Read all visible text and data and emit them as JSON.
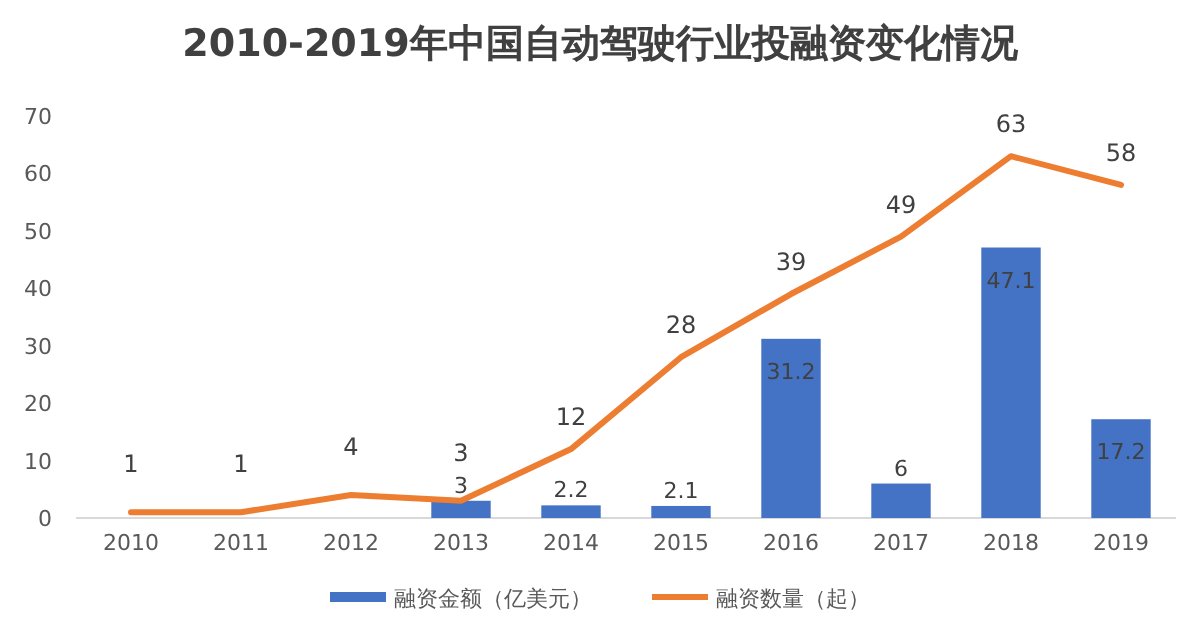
{
  "chart_data": {
    "type": "bar",
    "title": "2010-2019年中国自动驾驶行业投融资变化情况",
    "categories": [
      "2010",
      "2011",
      "2012",
      "2013",
      "2014",
      "2015",
      "2016",
      "2017",
      "2018",
      "2019"
    ],
    "series": [
      {
        "name": "融资金额（亿美元）",
        "color": "#4472c4",
        "values": [
          null,
          null,
          null,
          3,
          2.2,
          2.1,
          31.2,
          6,
          47.1,
          17.2
        ]
      },
      {
        "name": "融资数量（起）",
        "type": "line",
        "color": "#ed7d31",
        "values": [
          1,
          1,
          4,
          3,
          12,
          28,
          39,
          49,
          63,
          58
        ]
      }
    ],
    "ylim": [
      0,
      70
    ],
    "yticks": [
      0,
      10,
      20,
      30,
      40,
      50,
      60,
      70
    ],
    "data_labels": true,
    "legend": "bottom",
    "grid": false,
    "marker": "none"
  }
}
